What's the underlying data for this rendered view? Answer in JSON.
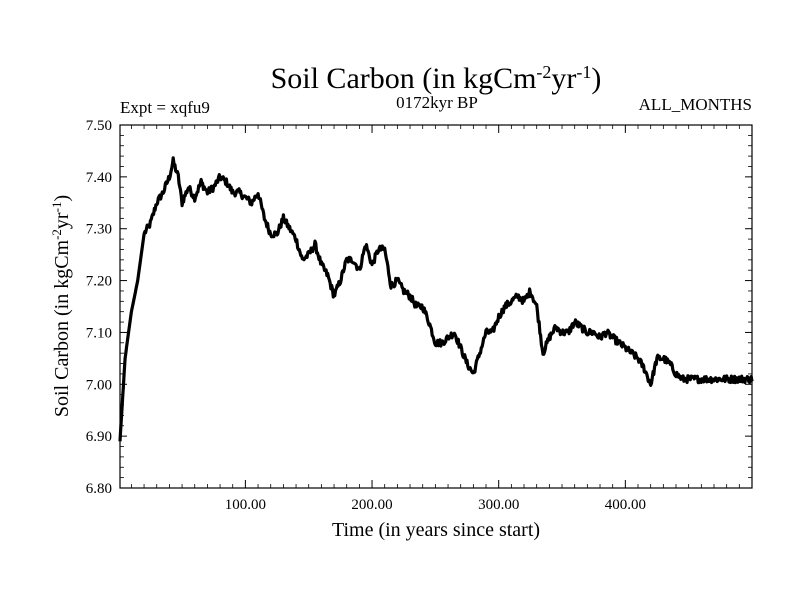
{
  "chart_data": {
    "type": "line",
    "title": "Soil Carbon (in kgCm",
    "title_sup1": "-2",
    "title_mid": "yr",
    "title_sup2": "-1",
    "title_end": ")",
    "subtitle_left": "Expt = xqfu9",
    "subtitle_center": "0172kyr BP",
    "subtitle_right": "ALL_MONTHS",
    "xlabel": "Time (in years since start)",
    "ylabel": "Soil Carbon (in kgCm",
    "ylabel_sup1": "-2",
    "ylabel_mid": "yr",
    "ylabel_sup2": "-1",
    "ylabel_end": ")",
    "xlim": [
      1,
      500
    ],
    "ylim": [
      6.8,
      7.5
    ],
    "x_ticks": [
      100,
      200,
      300,
      400
    ],
    "x_tick_labels": [
      "100.00",
      "200.00",
      "300.00",
      "400.00"
    ],
    "y_ticks": [
      6.8,
      6.9,
      7.0,
      7.1,
      7.2,
      7.3,
      7.4,
      7.5
    ],
    "y_tick_labels": [
      "6.80",
      "6.90",
      "7.00",
      "7.10",
      "7.20",
      "7.30",
      "7.40",
      "7.50"
    ],
    "series": [
      {
        "name": "Soil Carbon",
        "x": [
          1,
          5,
          10,
          15,
          20,
          25,
          30,
          35,
          40,
          43,
          47,
          50,
          55,
          60,
          65,
          70,
          75,
          80,
          85,
          90,
          95,
          100,
          105,
          110,
          115,
          120,
          125,
          130,
          135,
          140,
          145,
          150,
          155,
          160,
          165,
          170,
          175,
          180,
          185,
          190,
          195,
          200,
          205,
          210,
          215,
          220,
          225,
          230,
          235,
          240,
          245,
          250,
          255,
          260,
          265,
          270,
          275,
          280,
          285,
          290,
          295,
          300,
          305,
          310,
          315,
          320,
          325,
          330,
          335,
          340,
          345,
          350,
          355,
          360,
          365,
          370,
          375,
          380,
          385,
          390,
          395,
          400,
          405,
          410,
          415,
          420,
          425,
          430,
          435,
          440,
          445,
          450,
          455,
          460,
          465,
          470,
          475,
          480,
          485,
          490,
          495,
          500
        ],
        "values": [
          6.89,
          7.05,
          7.14,
          7.2,
          7.29,
          7.31,
          7.35,
          7.37,
          7.4,
          7.43,
          7.4,
          7.35,
          7.38,
          7.36,
          7.39,
          7.37,
          7.38,
          7.4,
          7.39,
          7.37,
          7.37,
          7.36,
          7.35,
          7.37,
          7.32,
          7.29,
          7.29,
          7.32,
          7.3,
          7.28,
          7.24,
          7.25,
          7.27,
          7.23,
          7.21,
          7.17,
          7.2,
          7.24,
          7.24,
          7.22,
          7.27,
          7.23,
          7.26,
          7.26,
          7.19,
          7.2,
          7.18,
          7.17,
          7.15,
          7.15,
          7.12,
          7.08,
          7.08,
          7.09,
          7.1,
          7.07,
          7.04,
          7.02,
          7.06,
          7.1,
          7.1,
          7.13,
          7.15,
          7.16,
          7.17,
          7.16,
          7.18,
          7.15,
          7.06,
          7.09,
          7.11,
          7.1,
          7.1,
          7.12,
          7.11,
          7.1,
          7.1,
          7.09,
          7.1,
          7.09,
          7.08,
          7.07,
          7.06,
          7.05,
          7.03,
          7.0,
          7.05,
          7.05,
          7.04,
          7.02,
          7.01,
          7.01,
          7.01,
          7.01,
          7.01,
          7.01,
          7.01,
          7.01,
          7.01,
          7.01,
          7.01,
          7.01
        ]
      }
    ]
  }
}
